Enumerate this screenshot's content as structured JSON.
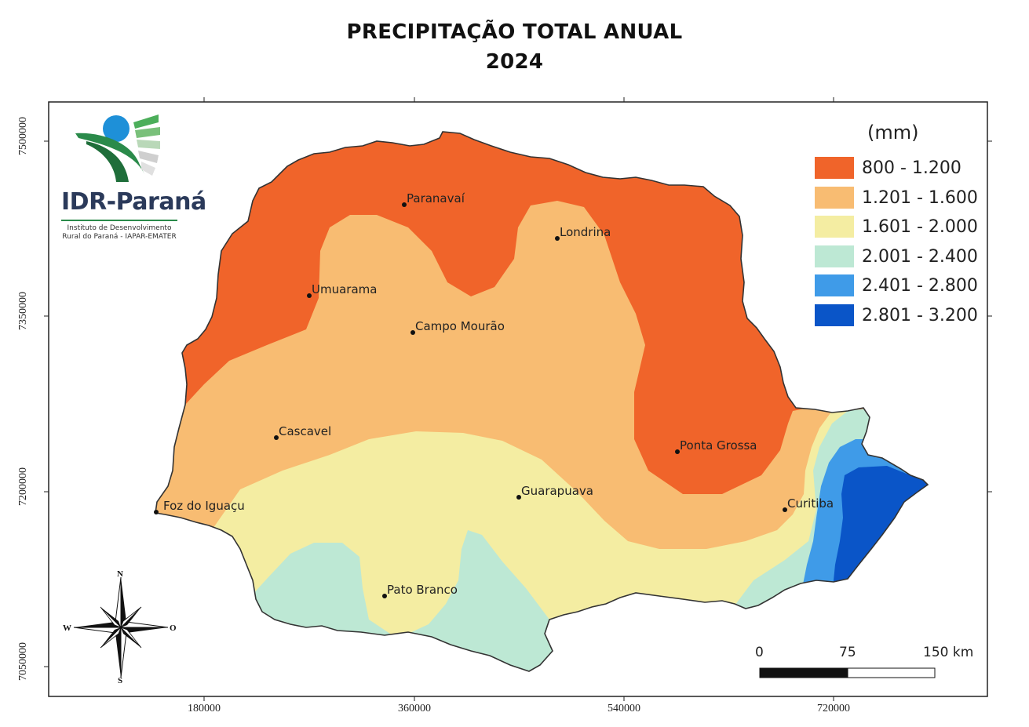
{
  "title": {
    "line1": "PRECIPITAÇÃO TOTAL ANUAL",
    "line2": "2024"
  },
  "logo": {
    "name": "IDR-Paraná",
    "subtitle1": "Instituto de Desenvolvimento",
    "subtitle2": "Rural do Paraná - IAPAR-EMATER"
  },
  "axes": {
    "y_ticks": [
      "7500000",
      "7350000",
      "7200000",
      "7050000"
    ],
    "x_ticks": [
      "180000",
      "360000",
      "540000",
      "720000"
    ]
  },
  "legend": {
    "title": "(mm)",
    "items": [
      {
        "label": "800 - 1.200",
        "color": "#f0642a"
      },
      {
        "label": "1.201 - 1.600",
        "color": "#f8bc72"
      },
      {
        "label": "1.601 - 2.000",
        "color": "#f4eda2"
      },
      {
        "label": "2.001 - 2.400",
        "color": "#bde8d4"
      },
      {
        "label": "2.401 - 2.800",
        "color": "#3f9be8"
      },
      {
        "label": "2.801 - 3.200",
        "color": "#0a55c8"
      }
    ]
  },
  "cities": [
    {
      "name": "Paranavaí"
    },
    {
      "name": "Londrina"
    },
    {
      "name": "Umuarama"
    },
    {
      "name": "Campo Mourão"
    },
    {
      "name": "Cascavel"
    },
    {
      "name": "Ponta Grossa"
    },
    {
      "name": "Foz do Iguaçu"
    },
    {
      "name": "Guarapuava"
    },
    {
      "name": "Curitiba"
    },
    {
      "name": "Pato Branco"
    }
  ],
  "scale_bar": {
    "labels": [
      "0",
      "75",
      "150 km"
    ]
  },
  "compass": {
    "n": "N",
    "s": "S",
    "w": "W",
    "e": "O"
  }
}
